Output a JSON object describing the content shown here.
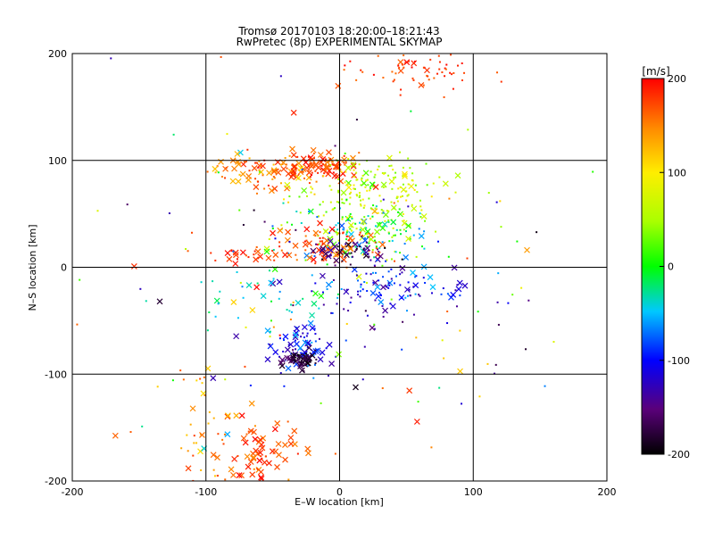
{
  "chart_data": {
    "type": "scatter",
    "title": "Tromsø 20170103 18:20:00–18:21:43",
    "subtitle": "RwPretec (8p) EXPERIMENTAL SKYMAP",
    "xlabel": "E–W location [km]",
    "ylabel": "N–S location [km]",
    "xlim": [
      -200,
      200
    ],
    "ylim": [
      -200,
      200
    ],
    "x_ticks": [
      -200,
      -100,
      0,
      100,
      200
    ],
    "y_ticks": [
      -200,
      -100,
      0,
      100,
      200
    ],
    "grid": true,
    "colorbar": {
      "label": "[m/s]",
      "range": [
        -200,
        200
      ],
      "ticks": [
        -200,
        -100,
        0,
        100,
        200
      ],
      "colormap": "rainbow (black-purple-blue-cyan-green-yellow-orange-red)"
    },
    "marker_types": [
      "dot",
      "cross"
    ],
    "clusters": [
      {
        "cx": -55,
        "cy": 90,
        "sx": 22,
        "sy": 8,
        "n": 90,
        "vmin": 120,
        "vmax": 200,
        "cross": 0.45
      },
      {
        "cx": -10,
        "cy": 95,
        "sx": 12,
        "sy": 7,
        "n": 80,
        "vmin": 150,
        "vmax": 200,
        "cross": 0.5
      },
      {
        "cx": 20,
        "cy": 75,
        "sx": 28,
        "sy": 14,
        "n": 170,
        "vmin": 20,
        "vmax": 110,
        "cross": 0.1
      },
      {
        "cx": 15,
        "cy": 35,
        "sx": 28,
        "sy": 15,
        "n": 160,
        "vmin": -80,
        "vmax": 80,
        "cross": 0.15
      },
      {
        "cx": -10,
        "cy": 20,
        "sx": 18,
        "sy": 9,
        "n": 80,
        "vmin": 150,
        "vmax": 200,
        "cross": 0.5
      },
      {
        "cx": 5,
        "cy": 15,
        "sx": 14,
        "sy": 6,
        "n": 50,
        "vmin": -200,
        "vmax": -140,
        "cross": 0.3
      },
      {
        "cx": 40,
        "cy": -20,
        "sx": 30,
        "sy": 12,
        "n": 110,
        "vmin": -160,
        "vmax": -50,
        "cross": 0.2
      },
      {
        "cx": -30,
        "cy": -75,
        "sx": 10,
        "sy": 12,
        "n": 70,
        "vmin": -150,
        "vmax": -50,
        "cross": 0.5
      },
      {
        "cx": -28,
        "cy": -87,
        "sx": 6,
        "sy": 4,
        "n": 60,
        "vmin": -200,
        "vmax": -170,
        "cross": 0.6
      },
      {
        "cx": -60,
        "cy": -175,
        "sx": 14,
        "sy": 16,
        "n": 70,
        "vmin": 140,
        "vmax": 200,
        "cross": 0.8
      },
      {
        "cx": -100,
        "cy": -150,
        "sx": 12,
        "sy": 30,
        "n": 40,
        "vmin": 100,
        "vmax": 180,
        "cross": 0.3
      },
      {
        "cx": 55,
        "cy": 185,
        "sx": 22,
        "sy": 10,
        "n": 70,
        "vmin": 160,
        "vmax": 200,
        "cross": 0.05
      },
      {
        "cx": -70,
        "cy": 12,
        "sx": 14,
        "sy": 4,
        "n": 25,
        "vmin": 160,
        "vmax": 200,
        "cross": 0.6
      },
      {
        "cx": -50,
        "cy": -30,
        "sx": 30,
        "sy": 12,
        "n": 30,
        "vmin": -60,
        "vmax": 0,
        "cross": 0.2
      },
      {
        "cx": 0,
        "cy": 0,
        "sx": 90,
        "sy": 100,
        "n": 160,
        "vmin": -200,
        "vmax": 200,
        "cross": 0.25
      }
    ]
  }
}
